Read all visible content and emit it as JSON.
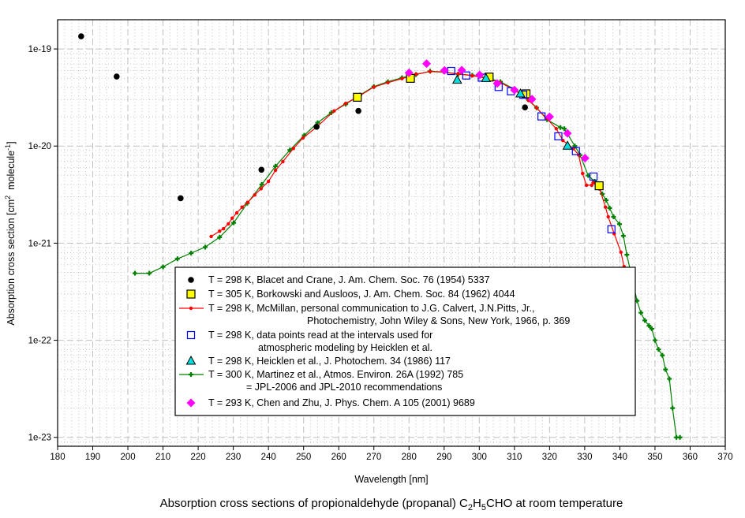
{
  "chart_data": {
    "type": "scatter",
    "title": "Absorption cross sections of propionaldehyde (propanal) C2H5CHO at room temperature",
    "caption_parts": {
      "prefix": "Absorption cross sections of propionaldehyde (propanal) C",
      "sub1": "2",
      "mid": "H",
      "sub2": "5",
      "suffix": "CHO at room temperature"
    },
    "xlabel": "Wavelength [nm]",
    "ylabel_parts": {
      "prefix": "Absorption cross section [cm",
      "sup1": "2",
      "mid": "  molecule",
      "sup2": "-1",
      "suffix": "]"
    },
    "xlim": [
      180,
      370
    ],
    "ylim": [
      8.1e-24,
      2e-19
    ],
    "yscale": "log",
    "grid": true,
    "legend_placement": "bottom-center",
    "x_ticks": [
      180,
      190,
      200,
      210,
      220,
      230,
      240,
      250,
      260,
      270,
      280,
      290,
      300,
      310,
      320,
      330,
      340,
      350,
      360,
      370
    ],
    "x_tick_labels": [
      "180",
      "190",
      "200",
      "210",
      "220",
      "230",
      "240",
      "250",
      "260",
      "270",
      "280",
      "290",
      "300",
      "310",
      "320",
      "330",
      "340",
      "350",
      "360",
      "370"
    ],
    "y_ticks": [
      1e-19,
      1e-20,
      1e-21,
      1e-22,
      1e-23
    ],
    "y_tick_labels": [
      "1e-19",
      "1e-20",
      "1e-21",
      "1e-22",
      "1e-23"
    ],
    "series": [
      {
        "name": "blacet",
        "marker": "circle",
        "color": "#000000",
        "line": false,
        "legend": [
          "T = 298 K, Blacet and Crane, J. Am. Chem. Soc. 76 (1954) 5337"
        ],
        "points": [
          [
            186.7,
            1.35e-19
          ],
          [
            196.8,
            5.2e-20
          ],
          [
            215.0,
            2.9e-21
          ],
          [
            238.0,
            5.7e-21
          ],
          [
            253.7,
            1.58e-20
          ],
          [
            265.6,
            2.3e-20
          ],
          [
            313.0,
            2.5e-20
          ]
        ]
      },
      {
        "name": "borkowski",
        "marker": "square-filled",
        "color": "#ffff00",
        "line": false,
        "legend": [
          "T = 305 K, Borkowski and Ausloos, J. Am. Chem. Soc. 84 (1962) 4044"
        ],
        "points": [
          [
            265.3,
            3.18e-20
          ],
          [
            280.4,
            4.98e-20
          ],
          [
            302.8,
            5.13e-20
          ],
          [
            313.3,
            3.45e-20
          ],
          [
            334.1,
            3.9e-21
          ]
        ]
      },
      {
        "name": "mcmillan",
        "marker": "dot",
        "color": "#ff0000",
        "line": true,
        "legend": [
          "T = 298 K, McMillan, personal communication to J.G. Calvert, J.N.Pitts, Jr.,",
          "Photochemistry, John Wiley & Sons, New York, 1966, p. 369"
        ],
        "points": [
          [
            223.7,
            1.17e-21
          ],
          [
            226.1,
            1.33e-21
          ],
          [
            227.2,
            1.41e-21
          ],
          [
            228.6,
            1.58e-21
          ],
          [
            229.7,
            1.81e-21
          ],
          [
            231.0,
            2.05e-21
          ],
          [
            232.5,
            2.35e-21
          ],
          [
            234.1,
            2.63e-21
          ],
          [
            236.1,
            3.14e-21
          ],
          [
            237.9,
            3.64e-21
          ],
          [
            240.0,
            4.33e-21
          ],
          [
            242.0,
            5.62e-21
          ],
          [
            244.1,
            6.91e-21
          ],
          [
            247.1,
            9.45e-21
          ],
          [
            249.8,
            1.21e-20
          ],
          [
            253.8,
            1.58e-20
          ],
          [
            258.7,
            2.3e-20
          ],
          [
            262,
            2.75e-20
          ],
          [
            266,
            3.3e-20
          ],
          [
            270,
            4.05e-20
          ],
          [
            274,
            4.5e-20
          ],
          [
            278,
            4.95e-20
          ],
          [
            282,
            5.5e-20
          ],
          [
            286,
            5.85e-20
          ],
          [
            290,
            5.75e-20
          ],
          [
            294,
            5.55e-20
          ],
          [
            298,
            5.3e-20
          ],
          [
            302,
            5e-20
          ],
          [
            306,
            4.5e-20
          ],
          [
            310,
            3.8e-20
          ],
          [
            314,
            2.95e-20
          ],
          [
            316.3,
            2.48e-20
          ],
          [
            319,
            1.95e-20
          ],
          [
            321.9,
            1.51e-20
          ],
          [
            323.8,
            1.14e-20
          ],
          [
            326.8,
            9.4e-21
          ],
          [
            328.3,
            8.07e-21
          ],
          [
            329.4,
            5.22e-21
          ],
          [
            330.5,
            3.95e-21
          ],
          [
            332.0,
            3.95e-21
          ],
          [
            332.4,
            4.2e-21
          ],
          [
            334.3,
            3.6e-21
          ],
          [
            335.9,
            2.35e-21
          ],
          [
            336.7,
            1.87e-21
          ],
          [
            338.4,
            1.25e-21
          ],
          [
            340.3,
            8.07e-22
          ],
          [
            341.2,
            5.73e-22
          ]
        ]
      },
      {
        "name": "heicklen-intervals",
        "marker": "square-open",
        "color": "#0000ff",
        "line": false,
        "legend": [
          "T = 298 K, data points read at the intervals used for",
          "atmospheric modeling by Heicklen et al."
        ],
        "points": [
          [
            292.0,
            5.93e-20
          ],
          [
            296.3,
            5.33e-20
          ],
          [
            300.7,
            5.07e-20
          ],
          [
            305.5,
            4.06e-20
          ],
          [
            309.0,
            3.67e-20
          ],
          [
            312.5,
            3.38e-20
          ],
          [
            317.7,
            2.02e-20
          ],
          [
            322.5,
            1.26e-20
          ],
          [
            327.5,
            8.87e-21
          ],
          [
            332.5,
            4.85e-21
          ],
          [
            337.6,
            1.39e-21
          ]
        ]
      },
      {
        "name": "heicklen",
        "marker": "triangle",
        "color": "#00e0e0",
        "line": false,
        "legend": [
          "T = 298 K, Heicklen et al., J. Photochem. 34 (1986) 117"
        ],
        "points": [
          [
            293.7,
            4.77e-20
          ],
          [
            301.9,
            4.98e-20
          ],
          [
            311.7,
            3.45e-20
          ],
          [
            325.1,
            1e-20
          ]
        ]
      },
      {
        "name": "martinez",
        "marker": "plus",
        "color": "#008000",
        "line": true,
        "legend": [
          "T = 300 K, Martinez et al., Atmos. Environ. 26A (1992) 785",
          "= JPL-2006 and JPL-2010 recommendations"
        ],
        "points": [
          [
            202.0,
            4.9e-22
          ],
          [
            206.1,
            4.9e-22
          ],
          [
            210.0,
            5.7e-22
          ],
          [
            214.1,
            6.9e-22
          ],
          [
            218.0,
            7.9e-22
          ],
          [
            222.0,
            9.1e-22
          ],
          [
            226.1,
            1.15e-21
          ],
          [
            230.1,
            1.62e-21
          ],
          [
            234.0,
            2.58e-21
          ],
          [
            238.1,
            4.02e-21
          ],
          [
            242.0,
            6.2e-21
          ],
          [
            246.1,
            9.1e-21
          ],
          [
            250.2,
            1.29e-20
          ],
          [
            254.0,
            1.74e-20
          ],
          [
            257.9,
            2.21e-20
          ],
          [
            262,
            2.7e-20
          ],
          [
            266,
            3.35e-20
          ],
          [
            270,
            4.1e-20
          ],
          [
            274,
            4.6e-20
          ],
          [
            278,
            5.05e-20
          ],
          [
            282,
            5.45e-20
          ],
          [
            286,
            5.9e-20
          ],
          [
            290,
            5.8e-20
          ],
          [
            294,
            5.5e-20
          ],
          [
            298,
            5.35e-20
          ],
          [
            302,
            5.05e-20
          ],
          [
            306,
            4.6e-20
          ],
          [
            310,
            3.85e-20
          ],
          [
            314,
            3e-20
          ],
          [
            316.3,
            2.48e-20
          ],
          [
            319.3,
            1.87e-20
          ],
          [
            323.1,
            1.55e-20
          ],
          [
            324.2,
            1.51e-20
          ],
          [
            327.2,
            1e-20
          ],
          [
            328.7,
            8.07e-21
          ],
          [
            331.0,
            4.97e-21
          ],
          [
            332.8,
            4.33e-21
          ],
          [
            335.0,
            3.21e-21
          ],
          [
            336.1,
            2.77e-21
          ],
          [
            337.1,
            2.3e-21
          ],
          [
            338.2,
            1.87e-21
          ],
          [
            339.9,
            1.57e-21
          ],
          [
            341.0,
            1.19e-21
          ],
          [
            342.0,
            7.59e-22
          ],
          [
            344.9,
            2.55e-22
          ],
          [
            346.0,
            1.92e-22
          ],
          [
            347.1,
            1.6e-22
          ],
          [
            348.3,
            1.41e-22
          ],
          [
            349.1,
            1.31e-22
          ],
          [
            350.0,
            1e-22
          ],
          [
            351.0,
            8.05e-23
          ],
          [
            352.1,
            7e-23
          ],
          [
            353.0,
            5e-23
          ],
          [
            354.1,
            4e-23
          ],
          [
            355.0,
            2e-23
          ],
          [
            356.1,
            1e-23
          ],
          [
            357.1,
            1e-23
          ]
        ]
      },
      {
        "name": "chen-zhu",
        "marker": "diamond",
        "color": "#ff00ff",
        "line": false,
        "legend": [
          "T = 293 K, Chen and Zhu, J. Phys. Chem. A 105 (2001) 9689"
        ],
        "points": [
          [
            280.0,
            5.68e-20
          ],
          [
            285.0,
            7.05e-20
          ],
          [
            290.1,
            6.01e-20
          ],
          [
            295.0,
            6.04e-20
          ],
          [
            300.1,
            5.4e-20
          ],
          [
            305.1,
            4.41e-20
          ],
          [
            310.0,
            3.77e-20
          ],
          [
            315.0,
            3.04e-20
          ],
          [
            320.0,
            2e-20
          ],
          [
            325.1,
            1.35e-20
          ],
          [
            330.1,
            7.5e-21
          ]
        ]
      }
    ]
  }
}
